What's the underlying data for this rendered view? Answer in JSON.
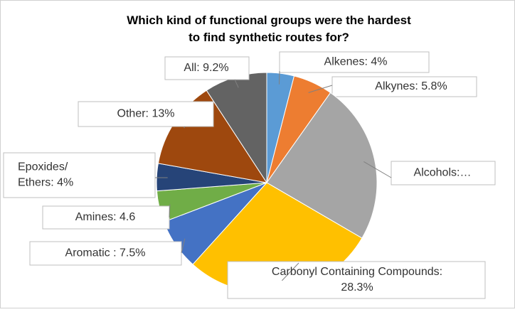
{
  "chart_data": {
    "type": "pie",
    "title": "Which kind of functional groups were the hardest\nto find synthetic routes for?",
    "categories": [
      "Alkenes: 4%",
      "Alkynes: 5.8%",
      "Alcohols:…",
      "Carbonyl Containing Compounds:\n28.3%",
      "Aromatic : 7.5%",
      "Amines: 4.6",
      "Epoxides/\nEthers: 4%",
      "Other: 13%",
      "All: 9.2%"
    ],
    "values": [
      4,
      5.8,
      23.6,
      28.3,
      7.5,
      4.6,
      4,
      13,
      9.2
    ],
    "colors": [
      "#5b9bd5",
      "#ed7d31",
      "#a5a5a5",
      "#ffc000",
      "#4472c4",
      "#70ad47",
      "#264478",
      "#9e480e",
      "#636363"
    ]
  }
}
